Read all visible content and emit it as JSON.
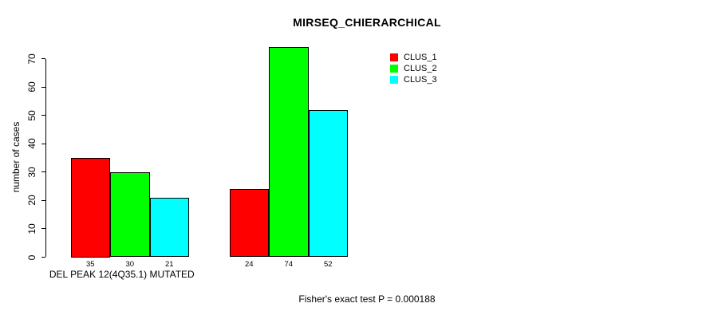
{
  "chart_data": {
    "type": "bar",
    "title": "MIRSEQ_CHIERARCHICAL",
    "ylabel": "number of cases",
    "xlabel": "",
    "ylim": [
      0,
      74
    ],
    "yticks": [
      0,
      10,
      20,
      30,
      40,
      50,
      60,
      70
    ],
    "grid": false,
    "categories": [
      "DEL PEAK 12(4Q35.1) MUTATED",
      ""
    ],
    "series": [
      {
        "name": "CLUS_1",
        "color": "#ff0000",
        "values": [
          35,
          24
        ]
      },
      {
        "name": "CLUS_2",
        "color": "#00ff00",
        "values": [
          30,
          74
        ]
      },
      {
        "name": "CLUS_3",
        "color": "#00ffff",
        "values": [
          21,
          52
        ]
      }
    ],
    "show_bar_values": true,
    "legend": {
      "position": "top-right-inside",
      "entries": [
        "CLUS_1",
        "CLUS_2",
        "CLUS_3"
      ]
    },
    "annotation": "Fisher's exact test P = 0.000188",
    "bar_border_color": "#000000",
    "text_color": "#000000",
    "background_color": "#ffffff"
  }
}
